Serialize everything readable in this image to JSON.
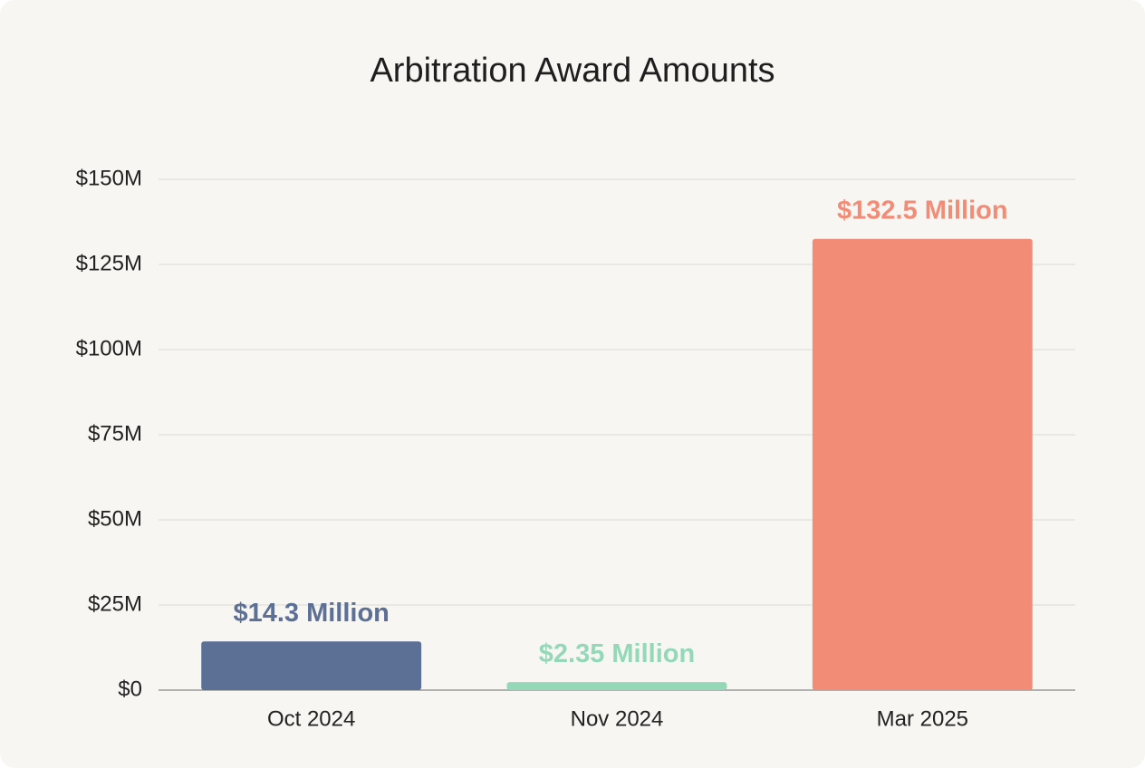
{
  "chart_data": {
    "type": "bar",
    "title": "Arbitration Award Amounts",
    "categories": [
      "Oct 2024",
      "Nov 2024",
      "Mar 2025"
    ],
    "values": [
      14300000,
      2350000,
      132500000
    ],
    "value_labels": [
      "$14.3 Million",
      "$2.35 Million",
      "$132.5 Million"
    ],
    "colors": [
      "#5c6f95",
      "#94d8b8",
      "#f28c77"
    ],
    "ylim": [
      0,
      150000000
    ],
    "yticks": [
      {
        "value": 0,
        "label": "$0"
      },
      {
        "value": 25000000,
        "label": "$25M"
      },
      {
        "value": 50000000,
        "label": "$50M"
      },
      {
        "value": 75000000,
        "label": "$75M"
      },
      {
        "value": 100000000,
        "label": "$100M"
      },
      {
        "value": 125000000,
        "label": "$125M"
      },
      {
        "value": 150000000,
        "label": "$150M"
      }
    ],
    "grid": true
  }
}
